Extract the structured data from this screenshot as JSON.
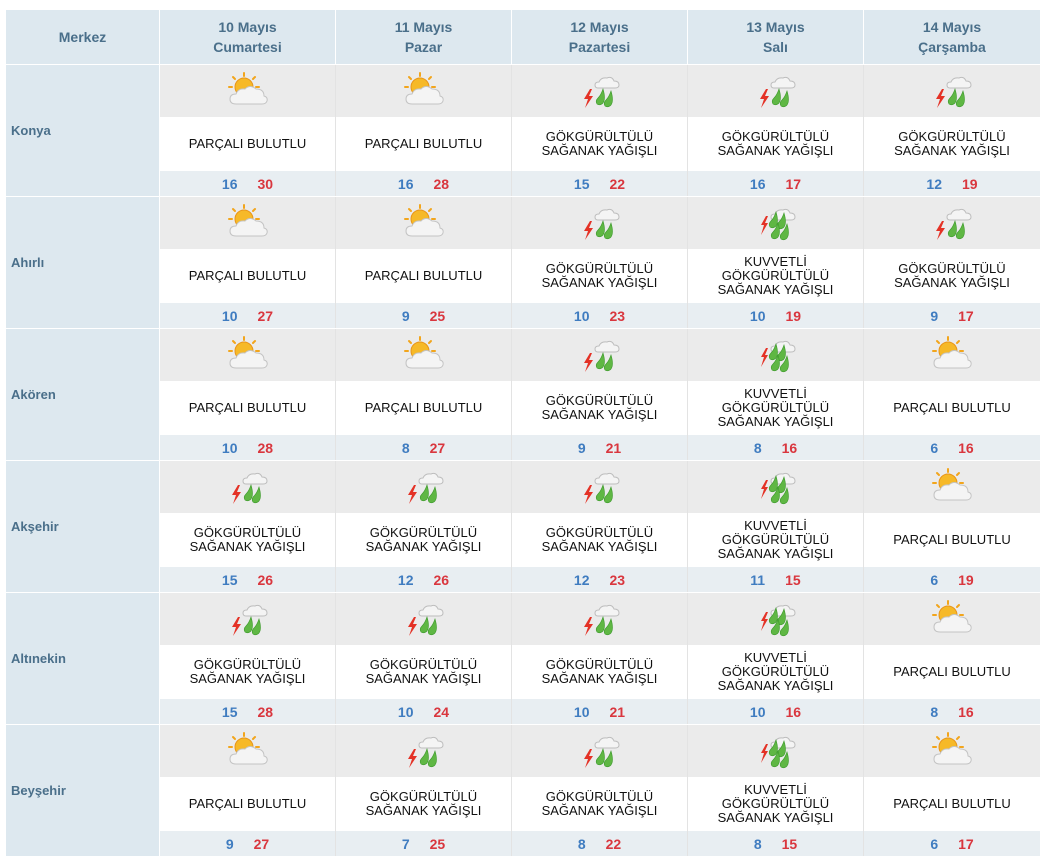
{
  "header": {
    "merkez_label": "Merkez",
    "days": [
      {
        "date": "10 Mayıs",
        "weekday": "Cumartesi"
      },
      {
        "date": "11 Mayıs",
        "weekday": "Pazar"
      },
      {
        "date": "12 Mayıs",
        "weekday": "Pazartesi"
      },
      {
        "date": "13 Mayıs",
        "weekday": "Salı"
      },
      {
        "date": "14 Mayıs",
        "weekday": "Çarşamba"
      }
    ]
  },
  "colors": {
    "min_temp": "#3f7cc0",
    "max_temp": "#d9363e",
    "header_bg": "#dde8ef",
    "header_text": "#4a6f8a"
  },
  "cities": [
    {
      "name": "Konya",
      "days": [
        {
          "condition": "PARÇALI BULUTLU",
          "icon": "partly-cloudy-icon",
          "min": "16",
          "max": "30"
        },
        {
          "condition": "PARÇALI BULUTLU",
          "icon": "partly-cloudy-icon",
          "min": "16",
          "max": "28"
        },
        {
          "condition": "GÖKGÜRÜLTÜLÜ\nSAĞANAK YAĞIŞLI",
          "icon": "thunderstorm-icon",
          "min": "15",
          "max": "22"
        },
        {
          "condition": "GÖKGÜRÜLTÜLÜ\nSAĞANAK YAĞIŞLI",
          "icon": "thunderstorm-icon",
          "min": "16",
          "max": "17"
        },
        {
          "condition": "GÖKGÜRÜLTÜLÜ\nSAĞANAK YAĞIŞLI",
          "icon": "thunderstorm-icon",
          "min": "12",
          "max": "19"
        }
      ]
    },
    {
      "name": "Ahırlı",
      "days": [
        {
          "condition": "PARÇALI BULUTLU",
          "icon": "partly-cloudy-icon",
          "min": "10",
          "max": "27"
        },
        {
          "condition": "PARÇALI BULUTLU",
          "icon": "partly-cloudy-icon",
          "min": "9",
          "max": "25"
        },
        {
          "condition": "GÖKGÜRÜLTÜLÜ\nSAĞANAK YAĞIŞLI",
          "icon": "thunderstorm-icon",
          "min": "10",
          "max": "23"
        },
        {
          "condition": "KUVVETLİ\nGÖKGÜRÜLTÜLÜ\nSAĞANAK YAĞIŞLI",
          "icon": "heavy-thunderstorm-icon",
          "min": "10",
          "max": "19"
        },
        {
          "condition": "GÖKGÜRÜLTÜLÜ\nSAĞANAK YAĞIŞLI",
          "icon": "thunderstorm-icon",
          "min": "9",
          "max": "17"
        }
      ]
    },
    {
      "name": "Akören",
      "days": [
        {
          "condition": "PARÇALI BULUTLU",
          "icon": "partly-cloudy-icon",
          "min": "10",
          "max": "28"
        },
        {
          "condition": "PARÇALI BULUTLU",
          "icon": "partly-cloudy-icon",
          "min": "8",
          "max": "27"
        },
        {
          "condition": "GÖKGÜRÜLTÜLÜ\nSAĞANAK YAĞIŞLI",
          "icon": "thunderstorm-icon",
          "min": "9",
          "max": "21"
        },
        {
          "condition": "KUVVETLİ\nGÖKGÜRÜLTÜLÜ\nSAĞANAK YAĞIŞLI",
          "icon": "heavy-thunderstorm-icon",
          "min": "8",
          "max": "16"
        },
        {
          "condition": "PARÇALI BULUTLU",
          "icon": "partly-cloudy-icon",
          "min": "6",
          "max": "16"
        }
      ]
    },
    {
      "name": "Akşehir",
      "days": [
        {
          "condition": "GÖKGÜRÜLTÜLÜ\nSAĞANAK YAĞIŞLI",
          "icon": "thunderstorm-icon",
          "min": "15",
          "max": "26"
        },
        {
          "condition": "GÖKGÜRÜLTÜLÜ\nSAĞANAK YAĞIŞLI",
          "icon": "thunderstorm-icon",
          "min": "12",
          "max": "26"
        },
        {
          "condition": "GÖKGÜRÜLTÜLÜ\nSAĞANAK YAĞIŞLI",
          "icon": "thunderstorm-icon",
          "min": "12",
          "max": "23"
        },
        {
          "condition": "KUVVETLİ\nGÖKGÜRÜLTÜLÜ\nSAĞANAK YAĞIŞLI",
          "icon": "heavy-thunderstorm-icon",
          "min": "11",
          "max": "15"
        },
        {
          "condition": "PARÇALI BULUTLU",
          "icon": "partly-cloudy-icon",
          "min": "6",
          "max": "19"
        }
      ]
    },
    {
      "name": "Altınekin",
      "days": [
        {
          "condition": "GÖKGÜRÜLTÜLÜ\nSAĞANAK YAĞIŞLI",
          "icon": "thunderstorm-icon",
          "min": "15",
          "max": "28"
        },
        {
          "condition": "GÖKGÜRÜLTÜLÜ\nSAĞANAK YAĞIŞLI",
          "icon": "thunderstorm-icon",
          "min": "10",
          "max": "24"
        },
        {
          "condition": "GÖKGÜRÜLTÜLÜ\nSAĞANAK YAĞIŞLI",
          "icon": "thunderstorm-icon",
          "min": "10",
          "max": "21"
        },
        {
          "condition": "KUVVETLİ\nGÖKGÜRÜLTÜLÜ\nSAĞANAK YAĞIŞLI",
          "icon": "heavy-thunderstorm-icon",
          "min": "10",
          "max": "16"
        },
        {
          "condition": "PARÇALI BULUTLU",
          "icon": "partly-cloudy-icon",
          "min": "8",
          "max": "16"
        }
      ]
    },
    {
      "name": "Beyşehir",
      "days": [
        {
          "condition": "PARÇALI BULUTLU",
          "icon": "partly-cloudy-icon",
          "min": "9",
          "max": "27"
        },
        {
          "condition": "GÖKGÜRÜLTÜLÜ\nSAĞANAK YAĞIŞLI",
          "icon": "thunderstorm-icon",
          "min": "7",
          "max": "25"
        },
        {
          "condition": "GÖKGÜRÜLTÜLÜ\nSAĞANAK YAĞIŞLI",
          "icon": "thunderstorm-icon",
          "min": "8",
          "max": "22"
        },
        {
          "condition": "KUVVETLİ\nGÖKGÜRÜLTÜLÜ\nSAĞANAK YAĞIŞLI",
          "icon": "heavy-thunderstorm-icon",
          "min": "8",
          "max": "15"
        },
        {
          "condition": "PARÇALI BULUTLU",
          "icon": "partly-cloudy-icon",
          "min": "6",
          "max": "17"
        }
      ]
    }
  ]
}
